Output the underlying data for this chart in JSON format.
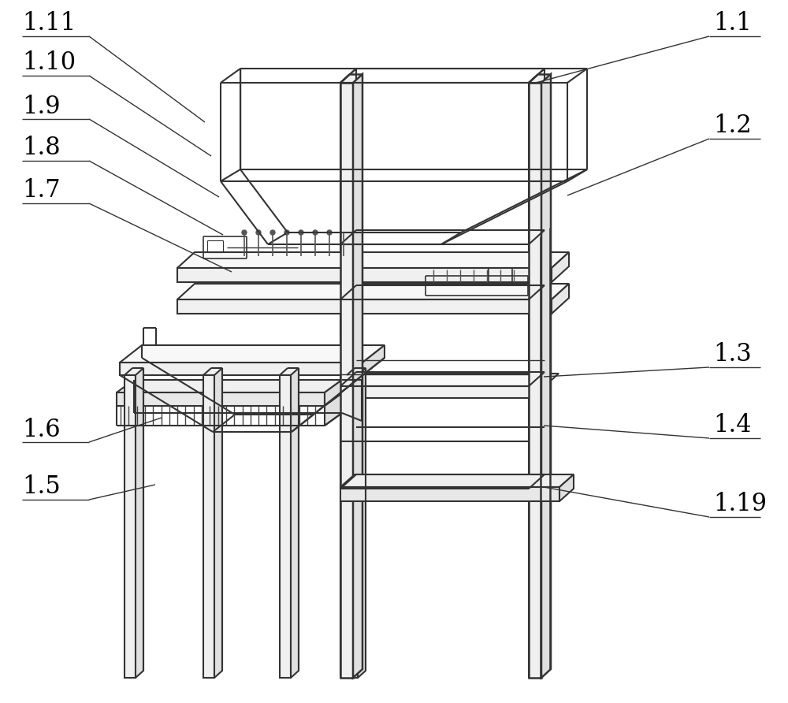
{
  "bg": "#ffffff",
  "lc": "#333333",
  "lw": 1.3,
  "figsize": [
    10.0,
    8.92
  ],
  "dpi": 100,
  "annotations": [
    [
      "1.11",
      28,
      30,
      260,
      155,
      "R"
    ],
    [
      "1.10",
      28,
      80,
      268,
      198,
      "R"
    ],
    [
      "1.9",
      28,
      135,
      278,
      250,
      "R"
    ],
    [
      "1.8",
      28,
      188,
      283,
      298,
      "R"
    ],
    [
      "1.7",
      28,
      242,
      294,
      345,
      "R"
    ],
    [
      "1.6",
      28,
      545,
      205,
      530,
      "R"
    ],
    [
      "1.5",
      28,
      618,
      197,
      615,
      "R"
    ],
    [
      "1.1",
      900,
      30,
      680,
      105,
      "L"
    ],
    [
      "1.2",
      900,
      160,
      720,
      248,
      "L"
    ],
    [
      "1.3",
      900,
      450,
      690,
      478,
      "L"
    ],
    [
      "1.4",
      900,
      540,
      690,
      540,
      "L"
    ],
    [
      "1.19",
      900,
      640,
      690,
      618,
      "L"
    ]
  ]
}
